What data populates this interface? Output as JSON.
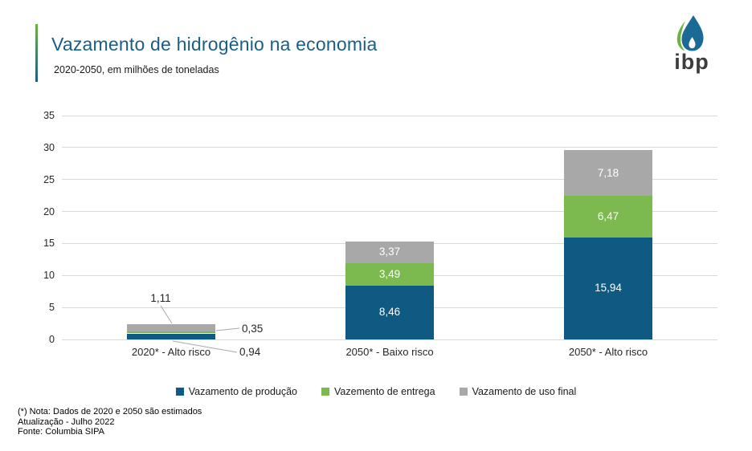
{
  "header": {
    "title": "Vazamento de hidrogênio na economia",
    "subtitle": "2020-2050, em milhões de toneladas",
    "logo_text": "ibp"
  },
  "chart_data": {
    "type": "bar",
    "stacked": true,
    "title": "Vazamento de hidrogênio na economia",
    "subtitle": "2020-2050, em milhões de toneladas",
    "categories": [
      "2020* - Alto risco",
      "2050* - Baixo risco",
      "2050* - Alto risco"
    ],
    "series": [
      {
        "name": "Vazamento de produção",
        "color": "#0F5A83",
        "values": [
          0.94,
          8.46,
          15.94
        ],
        "labels": [
          "0,94",
          "8,46",
          "15,94"
        ]
      },
      {
        "name": "Vazemento de entrega",
        "color": "#7CB94E",
        "values": [
          0.35,
          3.49,
          6.47
        ],
        "labels": [
          "0,35",
          "3,49",
          "6,47"
        ]
      },
      {
        "name": "Vazamento de uso final",
        "color": "#A8A8A8",
        "values": [
          1.11,
          3.37,
          7.18
        ],
        "labels": [
          "1,11",
          "3,37",
          "7,18"
        ]
      }
    ],
    "ylim": [
      0,
      35
    ],
    "yticks": [
      0,
      5,
      10,
      15,
      20,
      25,
      30,
      35
    ],
    "grid": true,
    "legend_position": "bottom",
    "xlabel": "",
    "ylabel": "",
    "callout_category_index": 0
  },
  "footer": {
    "note": "(*) Nota: Dados de 2020 e 2050 são estimados",
    "update": "Atualização - Julho 2022",
    "source": "Fonte: Columbia SIPA"
  },
  "colors": {
    "title": "#1A5E86",
    "accent_gradient_top": "#6CB33F",
    "accent_gradient_bottom": "#1A5E86",
    "gridline": "#D9D9D9",
    "callout_line": "#A9A9A9",
    "bar_blue": "#0F5A83",
    "bar_green": "#7CB94E",
    "bar_gray": "#A8A8A8",
    "logo_text": "#3D3D3D",
    "logo_drop_blue": "#1B6A96",
    "logo_leaf_green": "#6CB33F",
    "background": "#FFFFFF"
  }
}
